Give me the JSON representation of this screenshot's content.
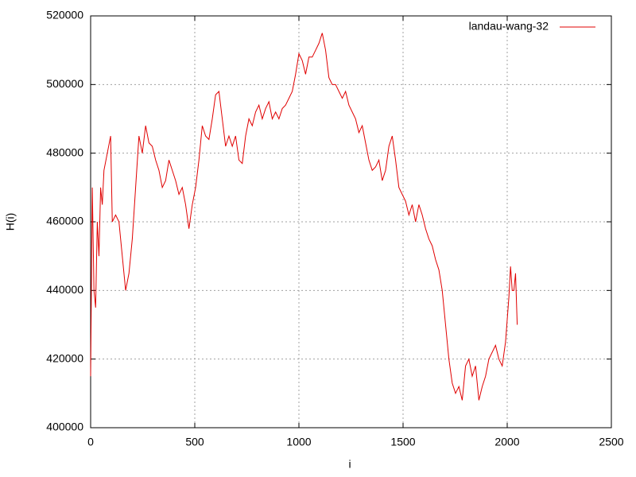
{
  "chart_data": {
    "type": "line",
    "xlabel": "i",
    "ylabel": "H(i)",
    "xlim": [
      0,
      2500
    ],
    "xticks": [
      0,
      500,
      1000,
      1500,
      2000,
      2500
    ],
    "ylim": [
      400000,
      520000
    ],
    "yticks": [
      400000,
      420000,
      440000,
      460000,
      480000,
      500000,
      520000
    ],
    "grid": true,
    "legend": "top-right",
    "x": [
      0,
      8,
      16,
      24,
      32,
      40,
      48,
      56,
      64,
      80,
      96,
      104,
      120,
      136,
      152,
      168,
      184,
      200,
      216,
      232,
      248,
      264,
      280,
      296,
      312,
      328,
      344,
      360,
      376,
      392,
      408,
      424,
      440,
      456,
      472,
      488,
      504,
      520,
      536,
      552,
      568,
      584,
      600,
      616,
      632,
      648,
      664,
      680,
      696,
      712,
      728,
      744,
      760,
      776,
      792,
      808,
      824,
      840,
      856,
      872,
      888,
      904,
      920,
      936,
      952,
      968,
      984,
      1000,
      1016,
      1032,
      1048,
      1064,
      1080,
      1096,
      1112,
      1128,
      1144,
      1160,
      1176,
      1192,
      1208,
      1224,
      1240,
      1256,
      1272,
      1288,
      1304,
      1320,
      1336,
      1352,
      1368,
      1384,
      1400,
      1416,
      1432,
      1448,
      1464,
      1480,
      1496,
      1512,
      1528,
      1544,
      1560,
      1576,
      1592,
      1608,
      1624,
      1640,
      1656,
      1672,
      1688,
      1704,
      1720,
      1736,
      1752,
      1768,
      1784,
      1800,
      1816,
      1832,
      1848,
      1864,
      1880,
      1896,
      1912,
      1928,
      1944,
      1960,
      1976,
      1992,
      2008,
      2016,
      2024,
      2032,
      2040,
      2048
    ],
    "series": [
      {
        "name": "landau-wang-32",
        "color": "#e00000",
        "values": [
          415000,
          470000,
          440000,
          435000,
          460000,
          450000,
          470000,
          465000,
          475000,
          480000,
          485000,
          460000,
          462000,
          460000,
          450000,
          440000,
          445000,
          455000,
          470000,
          485000,
          480000,
          488000,
          483000,
          482000,
          478000,
          475000,
          470000,
          472000,
          478000,
          475000,
          472000,
          468000,
          470000,
          465000,
          458000,
          465000,
          470000,
          478000,
          488000,
          485000,
          484000,
          490000,
          497000,
          498000,
          490000,
          482000,
          485000,
          482000,
          485000,
          478000,
          477000,
          485000,
          490000,
          488000,
          492000,
          494000,
          490000,
          493000,
          495000,
          490000,
          492000,
          490000,
          493000,
          494000,
          496000,
          498000,
          503000,
          509000,
          507000,
          503000,
          508000,
          508000,
          510000,
          512000,
          515000,
          510000,
          502000,
          500000,
          500000,
          498000,
          496000,
          498000,
          494000,
          492000,
          490000,
          486000,
          488000,
          483000,
          478000,
          475000,
          476000,
          478000,
          472000,
          475000,
          482000,
          485000,
          478000,
          470000,
          468000,
          466000,
          462000,
          465000,
          460000,
          465000,
          462000,
          458000,
          455000,
          453000,
          449000,
          446000,
          440000,
          430000,
          420000,
          413000,
          410000,
          412000,
          408000,
          418000,
          420000,
          415000,
          418000,
          408000,
          412000,
          415000,
          420000,
          422000,
          424000,
          420000,
          418000,
          425000,
          438000,
          447000,
          440000,
          440000,
          445000,
          430000
        ]
      }
    ]
  }
}
